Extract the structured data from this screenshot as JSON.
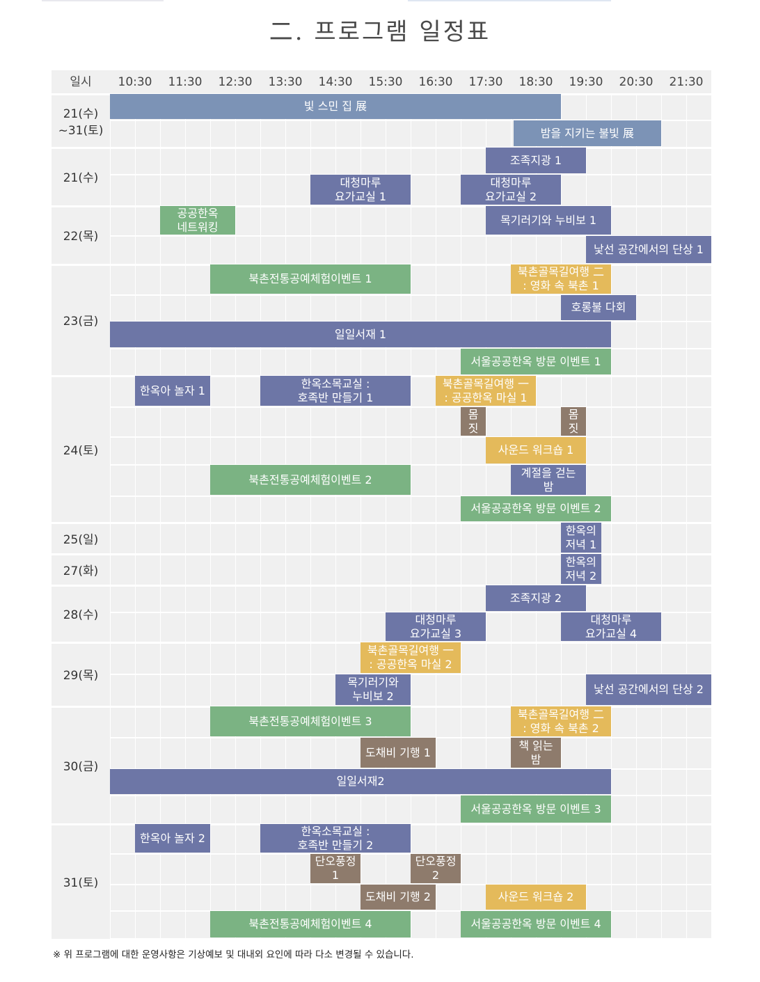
{
  "title": "二. 프로그램 일정표",
  "colors": {
    "blue": "#7c93b6",
    "indigo": "#6d76a6",
    "green": "#7bb383",
    "yellow": "#e4ba5b",
    "brown": "#8e7b6c",
    "grid_bg": "#f0f0f0"
  },
  "header": {
    "first": "일시",
    "times": [
      "10:30",
      "11:30",
      "12:30",
      "13:30",
      "14:30",
      "15:30",
      "16:30",
      "17:30",
      "18:30",
      "19:30",
      "20:30",
      "21:30"
    ]
  },
  "days": [
    {
      "label": "21(수)\n~31(토)"
    },
    {
      "label": "21(수)"
    },
    {
      "label": "22(목)"
    },
    {
      "label": "23(금)"
    },
    {
      "label": "24(토)"
    },
    {
      "label": "25(일)"
    },
    {
      "label": "27(화)"
    },
    {
      "label": "28(수)"
    },
    {
      "label": "29(목)"
    },
    {
      "label": "30(금)"
    },
    {
      "label": "31(토)"
    }
  ],
  "events": [
    {
      "label": "빛 스민 집 展",
      "color": "blue",
      "row": 0
    },
    {
      "label": "밤을 지키는 불빛 展",
      "color": "blue",
      "row": 1
    },
    {
      "label": "조족지광 1",
      "color": "indigo",
      "row": 2
    },
    {
      "label": "대청마루\n요가교실 1",
      "color": "indigo",
      "row": 3
    },
    {
      "label": "대청마루\n요가교실 2",
      "color": "indigo",
      "row": 3
    },
    {
      "label": "공공한옥\n네트워킹",
      "color": "green",
      "row": 4
    },
    {
      "label": "목기러기와 누비보 1",
      "color": "indigo",
      "row": 4
    },
    {
      "label": "낯선 공간에서의 단상 1",
      "color": "indigo",
      "row": 5
    },
    {
      "label": "북촌전통공예체험이벤트 1",
      "color": "green",
      "row": 6
    },
    {
      "label": "북촌골목길여행 二\n: 영화 속 북촌 1",
      "color": "yellow",
      "row": 6
    },
    {
      "label": "호롱불 다회",
      "color": "indigo",
      "row": 7
    },
    {
      "label": "일일서재 1",
      "color": "indigo",
      "row": 8
    },
    {
      "label": "서울공공한옥 방문 이벤트 1",
      "color": "green",
      "row": 9
    },
    {
      "label": "한옥아 놀자 1",
      "color": "indigo",
      "row": 10
    },
    {
      "label": "한옥소목교실 :\n호족반 만들기 1",
      "color": "indigo",
      "row": 10
    },
    {
      "label": "북촌골목길여행 一\n: 공공한옥 마실 1",
      "color": "yellow",
      "row": 10
    },
    {
      "label": "몸\n짓",
      "color": "brown",
      "row": 11
    },
    {
      "label": "몸\n짓",
      "color": "brown",
      "row": 11
    },
    {
      "label": "사운드 워크숍 1",
      "color": "yellow",
      "row": 12
    },
    {
      "label": "북촌전통공예체험이벤트 2",
      "color": "green",
      "row": 13
    },
    {
      "label": "계절을 걷는\n밤",
      "color": "indigo",
      "row": 13
    },
    {
      "label": "서울공공한옥 방문 이벤트 2",
      "color": "green",
      "row": 14
    },
    {
      "label": "한옥의\n저녁 1",
      "color": "indigo",
      "row": 15
    },
    {
      "label": "한옥의\n저녁 2",
      "color": "indigo",
      "row": 16
    },
    {
      "label": "조족지광 2",
      "color": "indigo",
      "row": 17
    },
    {
      "label": "대청마루\n요가교실 3",
      "color": "indigo",
      "row": 18
    },
    {
      "label": "대청마루\n요가교실 4",
      "color": "indigo",
      "row": 18
    },
    {
      "label": "북촌골목길여행 一\n: 공공한옥 마실 2",
      "color": "yellow",
      "row": 19
    },
    {
      "label": "목기러기와\n누비보 2",
      "color": "indigo",
      "row": 20
    },
    {
      "label": "낯선 공간에서의 단상 2",
      "color": "indigo",
      "row": 20
    },
    {
      "label": "북촌전통공예체험이벤트 3",
      "color": "green",
      "row": 21
    },
    {
      "label": "북촌골목길여행 二\n: 영화 속 북촌 2",
      "color": "yellow",
      "row": 21
    },
    {
      "label": "도채비 기행 1",
      "color": "brown",
      "row": 22
    },
    {
      "label": "책 읽는\n밤",
      "color": "brown",
      "row": 22
    },
    {
      "label": "일일서재2",
      "color": "indigo",
      "row": 23
    },
    {
      "label": "서울공공한옥 방문 이벤트 3",
      "color": "green",
      "row": 24
    },
    {
      "label": "한옥아 놀자 2",
      "color": "indigo",
      "row": 25
    },
    {
      "label": "한옥소목교실 :\n호족반 만들기 2",
      "color": "indigo",
      "row": 25
    },
    {
      "label": "단오풍정\n1",
      "color": "brown",
      "row": 26
    },
    {
      "label": "단오풍정\n2",
      "color": "brown",
      "row": 26
    },
    {
      "label": "도채비 기행 2",
      "color": "brown",
      "row": 27
    },
    {
      "label": "사운드 워크숍 2",
      "color": "yellow",
      "row": 27
    },
    {
      "label": "북촌전통공예체험이벤트 4",
      "color": "green",
      "row": 28
    },
    {
      "label": "서울공공한옥 방문 이벤트 4",
      "color": "green",
      "row": 28
    }
  ],
  "note": "※ 위 프로그램에 대한 운영사항은 기상예보 및 대내외 요인에 따라 다소 변경될 수 있습니다."
}
